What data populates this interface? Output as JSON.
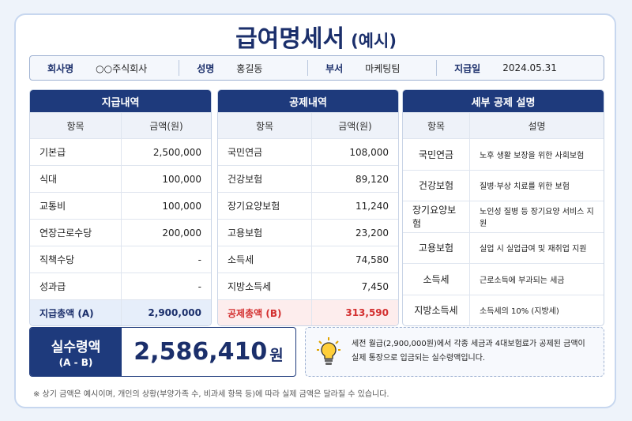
{
  "header": {
    "title": "급여명세서",
    "subtitle": "(예시)"
  },
  "info": [
    {
      "label": "회사명",
      "value": "○○주식회사"
    },
    {
      "label": "성명",
      "value": "홍길동"
    },
    {
      "label": "부서",
      "value": "마케팅팀"
    },
    {
      "label": "지급일",
      "value": "2024.05.31"
    }
  ],
  "earnings": {
    "title": "지급내역",
    "columns": [
      "항목",
      "금액(원)"
    ],
    "rows": [
      [
        "기본급",
        "2,500,000"
      ],
      [
        "식대",
        "100,000"
      ],
      [
        "교통비",
        "100,000"
      ],
      [
        "연장근로수당",
        "200,000"
      ],
      [
        "직책수당",
        "-"
      ],
      [
        "성과급",
        "-"
      ]
    ],
    "total": [
      "지급총액 (A)",
      "2,900,000"
    ]
  },
  "deductions": {
    "title": "공제내역",
    "columns": [
      "항목",
      "금액(원)"
    ],
    "rows": [
      [
        "국민연금",
        "108,000"
      ],
      [
        "건강보험",
        "89,120"
      ],
      [
        "장기요양보험",
        "11,240"
      ],
      [
        "고용보험",
        "23,200"
      ],
      [
        "소득세",
        "74,580"
      ],
      [
        "지방소득세",
        "7,450"
      ]
    ],
    "total": [
      "공제총액 (B)",
      "313,590"
    ]
  },
  "descriptions": {
    "title": "세부 공제 설명",
    "columns": [
      "항목",
      "설명"
    ],
    "rows": [
      [
        "국민연금",
        "노후 생활 보장을 위한 사회보험"
      ],
      [
        "건강보험",
        "질병·부상 치료를 위한 보험"
      ],
      [
        "장기요양보험",
        "노인성 질병 등 장기요양 서비스 지원"
      ],
      [
        "고용보험",
        "실업 시 실업급여 및 재취업 지원"
      ],
      [
        "소득세",
        "근로소득에 부과되는 세금"
      ],
      [
        "지방소득세",
        "소득세의 10% (지방세)"
      ]
    ]
  },
  "net_pay": {
    "label": "실수령액",
    "sublabel": "(A - B)",
    "amount": "2,586,410",
    "unit": "원"
  },
  "note": {
    "lines": [
      "세전 월급(2,900,000원)에서 각종 세금과 4대보험료가 공제된 금액이",
      "실제 통장으로 입금되는 실수령액입니다."
    ]
  },
  "footer": "※ 상기 금액은 예시이며, 개인의 상황(부양가족 수, 비과세 항목 등)에 따라 실제 금액은 달라질 수 있습니다."
}
